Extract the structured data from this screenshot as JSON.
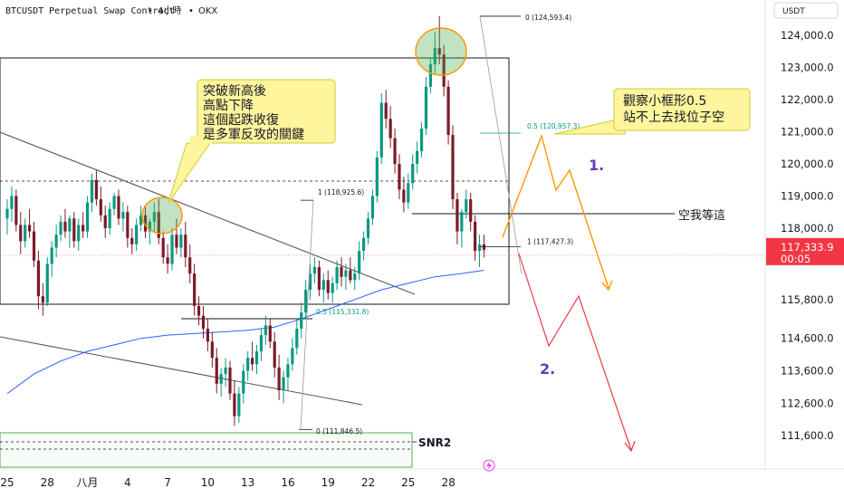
{
  "header": {
    "title": "BTCUSDT Perpetual Swap Contract",
    "timeframe": "4小時",
    "exchange": "OKX",
    "separator": "•"
  },
  "price_axis": {
    "currency": "USDT",
    "tick_labels": [
      "124,000.0",
      "123,000.0",
      "122,000.0",
      "121,000.0",
      "120,000.0",
      "119,000.0",
      "118,000.0",
      "115,800.0",
      "114,600.0",
      "113,600.0",
      "112,600.0",
      "111,600.0"
    ],
    "tick_values": [
      124000,
      123000,
      122000,
      121000,
      120000,
      119000,
      118000,
      115800,
      114600,
      113600,
      112600,
      111600
    ],
    "current_price_label": "117,333.9",
    "current_price": 117333.9,
    "countdown": "00:05"
  },
  "time_axis": {
    "tick_labels": [
      "25",
      "28",
      "八月",
      "4",
      "7",
      "10",
      "13",
      "16",
      "19",
      "22",
      "25",
      "28"
    ],
    "tick_index": [
      0,
      3,
      6,
      9,
      12,
      15,
      18,
      21,
      24,
      27,
      30,
      33
    ]
  },
  "annotations": {
    "left_note": [
      "突破新高後",
      "高點下降",
      "這個起跌收復",
      "是多軍反攻的關鍵"
    ],
    "right_note": [
      "觀察小框形0.5",
      "站不上去找位子空"
    ],
    "wait_label": "空我等這",
    "snr_label": "SNR2",
    "scenario_1": "1.",
    "scenario_2": "2."
  },
  "fib_upper": {
    "levels": [
      {
        "label": "0 (124,593.4)",
        "value": 124593.4
      },
      {
        "label": "0.5 (120,957.3)",
        "value": 120957.3
      },
      {
        "label": "1 (117,427.3)",
        "value": 117427.3
      }
    ]
  },
  "fib_lower": {
    "levels": [
      {
        "label": "1 (118,925.6)",
        "value": 118925.6
      },
      {
        "label": "0.5 (115,331.8)",
        "value": 115331.8
      },
      {
        "label": "0 (111,846.5)",
        "value": 111846.5
      }
    ]
  },
  "colors": {
    "bull": "#089981",
    "bear": "#7b1a2a",
    "ma": "#2962ff",
    "price_tag": "#f23645",
    "path1": "#ff9800",
    "path2": "#f23645",
    "note_bg": "#fff59d",
    "note_border": "#c9cf33",
    "scenario_text": "#673ab7",
    "snr_box": "#4caf50"
  },
  "chart_data": {
    "type": "candlestick",
    "interval": "4h",
    "symbol": "BTCUSDT",
    "x_start_label": "25",
    "candles_per_day": 6,
    "ohlc": [
      [
        118300,
        118900,
        117800,
        118600
      ],
      [
        118600,
        119300,
        118200,
        119000
      ],
      [
        119000,
        119200,
        117900,
        118100
      ],
      [
        118100,
        118500,
        117200,
        117600
      ],
      [
        117600,
        118300,
        117400,
        118100
      ],
      [
        118100,
        118600,
        117700,
        117900
      ],
      [
        117900,
        118200,
        116800,
        117000
      ],
      [
        117000,
        117300,
        115500,
        115900
      ],
      [
        115900,
        116300,
        115300,
        115700
      ],
      [
        115700,
        117100,
        115600,
        116900
      ],
      [
        116900,
        117600,
        116500,
        117400
      ],
      [
        117400,
        118100,
        117100,
        117800
      ],
      [
        117800,
        118400,
        117600,
        118200
      ],
      [
        118200,
        118600,
        117700,
        117900
      ],
      [
        117900,
        118400,
        117400,
        118300
      ],
      [
        118300,
        118500,
        117400,
        117600
      ],
      [
        117600,
        118300,
        117300,
        118100
      ],
      [
        118100,
        118500,
        117700,
        117900
      ],
      [
        117900,
        119000,
        117700,
        118800
      ],
      [
        118800,
        119700,
        118500,
        119500
      ],
      [
        119500,
        119800,
        118700,
        118900
      ],
      [
        118900,
        119300,
        118200,
        118400
      ],
      [
        118400,
        118700,
        117700,
        118000
      ],
      [
        118000,
        118800,
        117800,
        118600
      ],
      [
        118600,
        119100,
        118400,
        119000
      ],
      [
        119000,
        119200,
        118100,
        118300
      ],
      [
        118300,
        118800,
        117900,
        118500
      ],
      [
        118500,
        118700,
        117400,
        117700
      ],
      [
        117700,
        118000,
        117200,
        117500
      ],
      [
        117500,
        118300,
        117300,
        118100
      ],
      [
        118100,
        118700,
        117900,
        118400
      ],
      [
        118400,
        118700,
        117700,
        117900
      ],
      [
        117900,
        118300,
        117500,
        118200
      ],
      [
        118200,
        118800,
        117900,
        118500
      ],
      [
        118500,
        118900,
        117500,
        117700
      ],
      [
        117700,
        117900,
        116900,
        117100
      ],
      [
        117100,
        117500,
        116600,
        116900
      ],
      [
        116900,
        118000,
        116700,
        117800
      ],
      [
        117800,
        118300,
        117200,
        117400
      ],
      [
        117400,
        118000,
        117100,
        117800
      ],
      [
        117800,
        118200,
        116800,
        117100
      ],
      [
        117100,
        117500,
        116300,
        116600
      ],
      [
        116600,
        116900,
        115300,
        115600
      ],
      [
        115600,
        115900,
        115000,
        115300
      ],
      [
        115300,
        115600,
        114600,
        114900
      ],
      [
        114900,
        115200,
        114200,
        114500
      ],
      [
        114500,
        114800,
        113700,
        114000
      ],
      [
        114000,
        114300,
        112900,
        113200
      ],
      [
        113200,
        113700,
        112800,
        113500
      ],
      [
        113500,
        114000,
        113100,
        113700
      ],
      [
        113700,
        113900,
        112700,
        112900
      ],
      [
        112900,
        113300,
        111900,
        112200
      ],
      [
        112200,
        113100,
        112000,
        112900
      ],
      [
        112900,
        113800,
        112600,
        113600
      ],
      [
        113600,
        114200,
        113300,
        114000
      ],
      [
        114000,
        114500,
        113600,
        113800
      ],
      [
        113800,
        114400,
        113500,
        114200
      ],
      [
        114200,
        114900,
        113900,
        114700
      ],
      [
        114700,
        115300,
        114400,
        115000
      ],
      [
        115000,
        115200,
        114300,
        114500
      ],
      [
        114500,
        114800,
        113400,
        113700
      ],
      [
        113700,
        114100,
        112700,
        113000
      ],
      [
        113000,
        113600,
        112600,
        113400
      ],
      [
        113400,
        114000,
        113000,
        113800
      ],
      [
        113800,
        114600,
        113600,
        114300
      ],
      [
        114300,
        115200,
        114100,
        114900
      ],
      [
        114900,
        115700,
        114600,
        115400
      ],
      [
        115400,
        116400,
        115200,
        116100
      ],
      [
        116100,
        116900,
        115800,
        116600
      ],
      [
        116600,
        117100,
        116300,
        116800
      ],
      [
        116800,
        117000,
        115900,
        116100
      ],
      [
        116100,
        116600,
        115700,
        116400
      ],
      [
        116400,
        116700,
        115800,
        116000
      ],
      [
        116000,
        116500,
        115700,
        116300
      ],
      [
        116300,
        117000,
        116100,
        116800
      ],
      [
        116800,
        117100,
        116200,
        116500
      ],
      [
        116500,
        116900,
        116100,
        116700
      ],
      [
        116700,
        117100,
        116300,
        116400
      ],
      [
        116400,
        116800,
        116100,
        116600
      ],
      [
        116600,
        117600,
        116400,
        117300
      ],
      [
        117300,
        117900,
        117000,
        117700
      ],
      [
        117700,
        118500,
        117500,
        118300
      ],
      [
        118300,
        119200,
        118100,
        119000
      ],
      [
        119000,
        120400,
        118800,
        120200
      ],
      [
        120200,
        122200,
        120000,
        121900
      ],
      [
        121900,
        122300,
        121100,
        121400
      ],
      [
        121400,
        121800,
        120500,
        120800
      ],
      [
        120800,
        121100,
        119700,
        120000
      ],
      [
        120000,
        120300,
        118900,
        119200
      ],
      [
        119200,
        119600,
        118500,
        118800
      ],
      [
        118800,
        119700,
        118600,
        119400
      ],
      [
        119400,
        120300,
        119200,
        120000
      ],
      [
        120000,
        120700,
        119700,
        120400
      ],
      [
        120400,
        121300,
        120200,
        121100
      ],
      [
        121100,
        122700,
        120900,
        122400
      ],
      [
        122400,
        123300,
        122200,
        123100
      ],
      [
        123100,
        124100,
        122800,
        123600
      ],
      [
        123600,
        124593.4,
        123100,
        123400
      ],
      [
        123400,
        123700,
        122100,
        122400
      ],
      [
        122400,
        122600,
        120600,
        120900
      ],
      [
        120900,
        121200,
        118600,
        118900
      ],
      [
        118900,
        119100,
        117500,
        117900
      ],
      [
        117900,
        118600,
        117400,
        118500
      ],
      [
        118500,
        119200,
        118300,
        118900
      ],
      [
        118900,
        119100,
        117900,
        118200
      ],
      [
        118200,
        118400,
        117000,
        117300
      ],
      [
        117300,
        117800,
        116800,
        117500
      ],
      [
        117500,
        117800,
        117100,
        117333.9
      ]
    ],
    "ma_line": {
      "x_index": [
        0,
        6,
        12,
        18,
        24,
        30,
        36,
        42,
        48,
        54,
        60,
        66,
        72,
        78,
        84,
        90,
        96,
        102,
        107
      ],
      "values": [
        112900,
        113500,
        113900,
        114200,
        114400,
        114600,
        114700,
        114750,
        114800,
        114850,
        114950,
        115200,
        115500,
        115800,
        116100,
        116300,
        116500,
        116600,
        116700
      ]
    }
  }
}
